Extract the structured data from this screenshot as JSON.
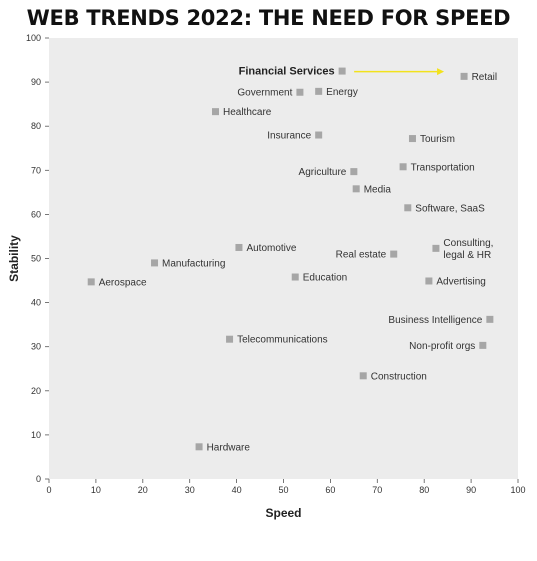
{
  "chart_data": {
    "type": "scatter",
    "title": "WEB TRENDS 2022: THE NEED FOR SPEED",
    "xlabel": "Speed",
    "ylabel": "Stability",
    "xlim": [
      0,
      100
    ],
    "ylim": [
      0,
      100
    ],
    "xticks": [
      "0",
      "10",
      "20",
      "30",
      "40",
      "50",
      "60",
      "70",
      "80",
      "90",
      "100"
    ],
    "yticks": [
      "0",
      "10",
      "20",
      "30",
      "40",
      "50",
      "60",
      "70",
      "80",
      "90",
      "100"
    ],
    "grid": false,
    "marker_color": "#a6a6a6",
    "plot_background": "#ececec",
    "arrow_color": "#f2e21c",
    "points": [
      {
        "label": "Financial Services",
        "x": 62.5,
        "y": 92.5,
        "side": "left",
        "bold": true
      },
      {
        "label": "Retail",
        "x": 88.5,
        "y": 91.3,
        "side": "right"
      },
      {
        "label": "Government",
        "x": 53.5,
        "y": 87.7,
        "side": "left"
      },
      {
        "label": "Energy",
        "x": 57.5,
        "y": 87.9,
        "side": "right"
      },
      {
        "label": "Healthcare",
        "x": 35.5,
        "y": 83.3,
        "side": "right"
      },
      {
        "label": "Insurance",
        "x": 57.5,
        "y": 78.0,
        "side": "left"
      },
      {
        "label": "Tourism",
        "x": 77.5,
        "y": 77.2,
        "side": "right"
      },
      {
        "label": "Transportation",
        "x": 75.5,
        "y": 70.8,
        "side": "right"
      },
      {
        "label": "Agriculture",
        "x": 65.0,
        "y": 69.7,
        "side": "left"
      },
      {
        "label": "Media",
        "x": 65.5,
        "y": 65.8,
        "side": "right"
      },
      {
        "label": "Software, SaaS",
        "x": 76.5,
        "y": 61.5,
        "side": "right"
      },
      {
        "label": "Automotive",
        "x": 40.5,
        "y": 52.5,
        "side": "right"
      },
      {
        "label": "Consulting,\nlegal & HR",
        "x": 82.5,
        "y": 52.3,
        "side": "right"
      },
      {
        "label": "Real estate",
        "x": 73.5,
        "y": 51.0,
        "side": "left"
      },
      {
        "label": "Manufacturing",
        "x": 22.5,
        "y": 49.0,
        "side": "right"
      },
      {
        "label": "Education",
        "x": 52.5,
        "y": 45.8,
        "side": "right"
      },
      {
        "label": "Aerospace",
        "x": 9.0,
        "y": 44.7,
        "side": "right"
      },
      {
        "label": "Advertising",
        "x": 81.0,
        "y": 44.9,
        "side": "right"
      },
      {
        "label": "Business Intelligence",
        "x": 94.0,
        "y": 36.2,
        "side": "left"
      },
      {
        "label": "Telecommunications",
        "x": 38.5,
        "y": 31.7,
        "side": "right"
      },
      {
        "label": "Non-profit orgs",
        "x": 92.5,
        "y": 30.3,
        "side": "left"
      },
      {
        "label": "Construction",
        "x": 67.0,
        "y": 23.4,
        "side": "right"
      },
      {
        "label": "Hardware",
        "x": 32.0,
        "y": 7.3,
        "side": "right"
      }
    ]
  }
}
